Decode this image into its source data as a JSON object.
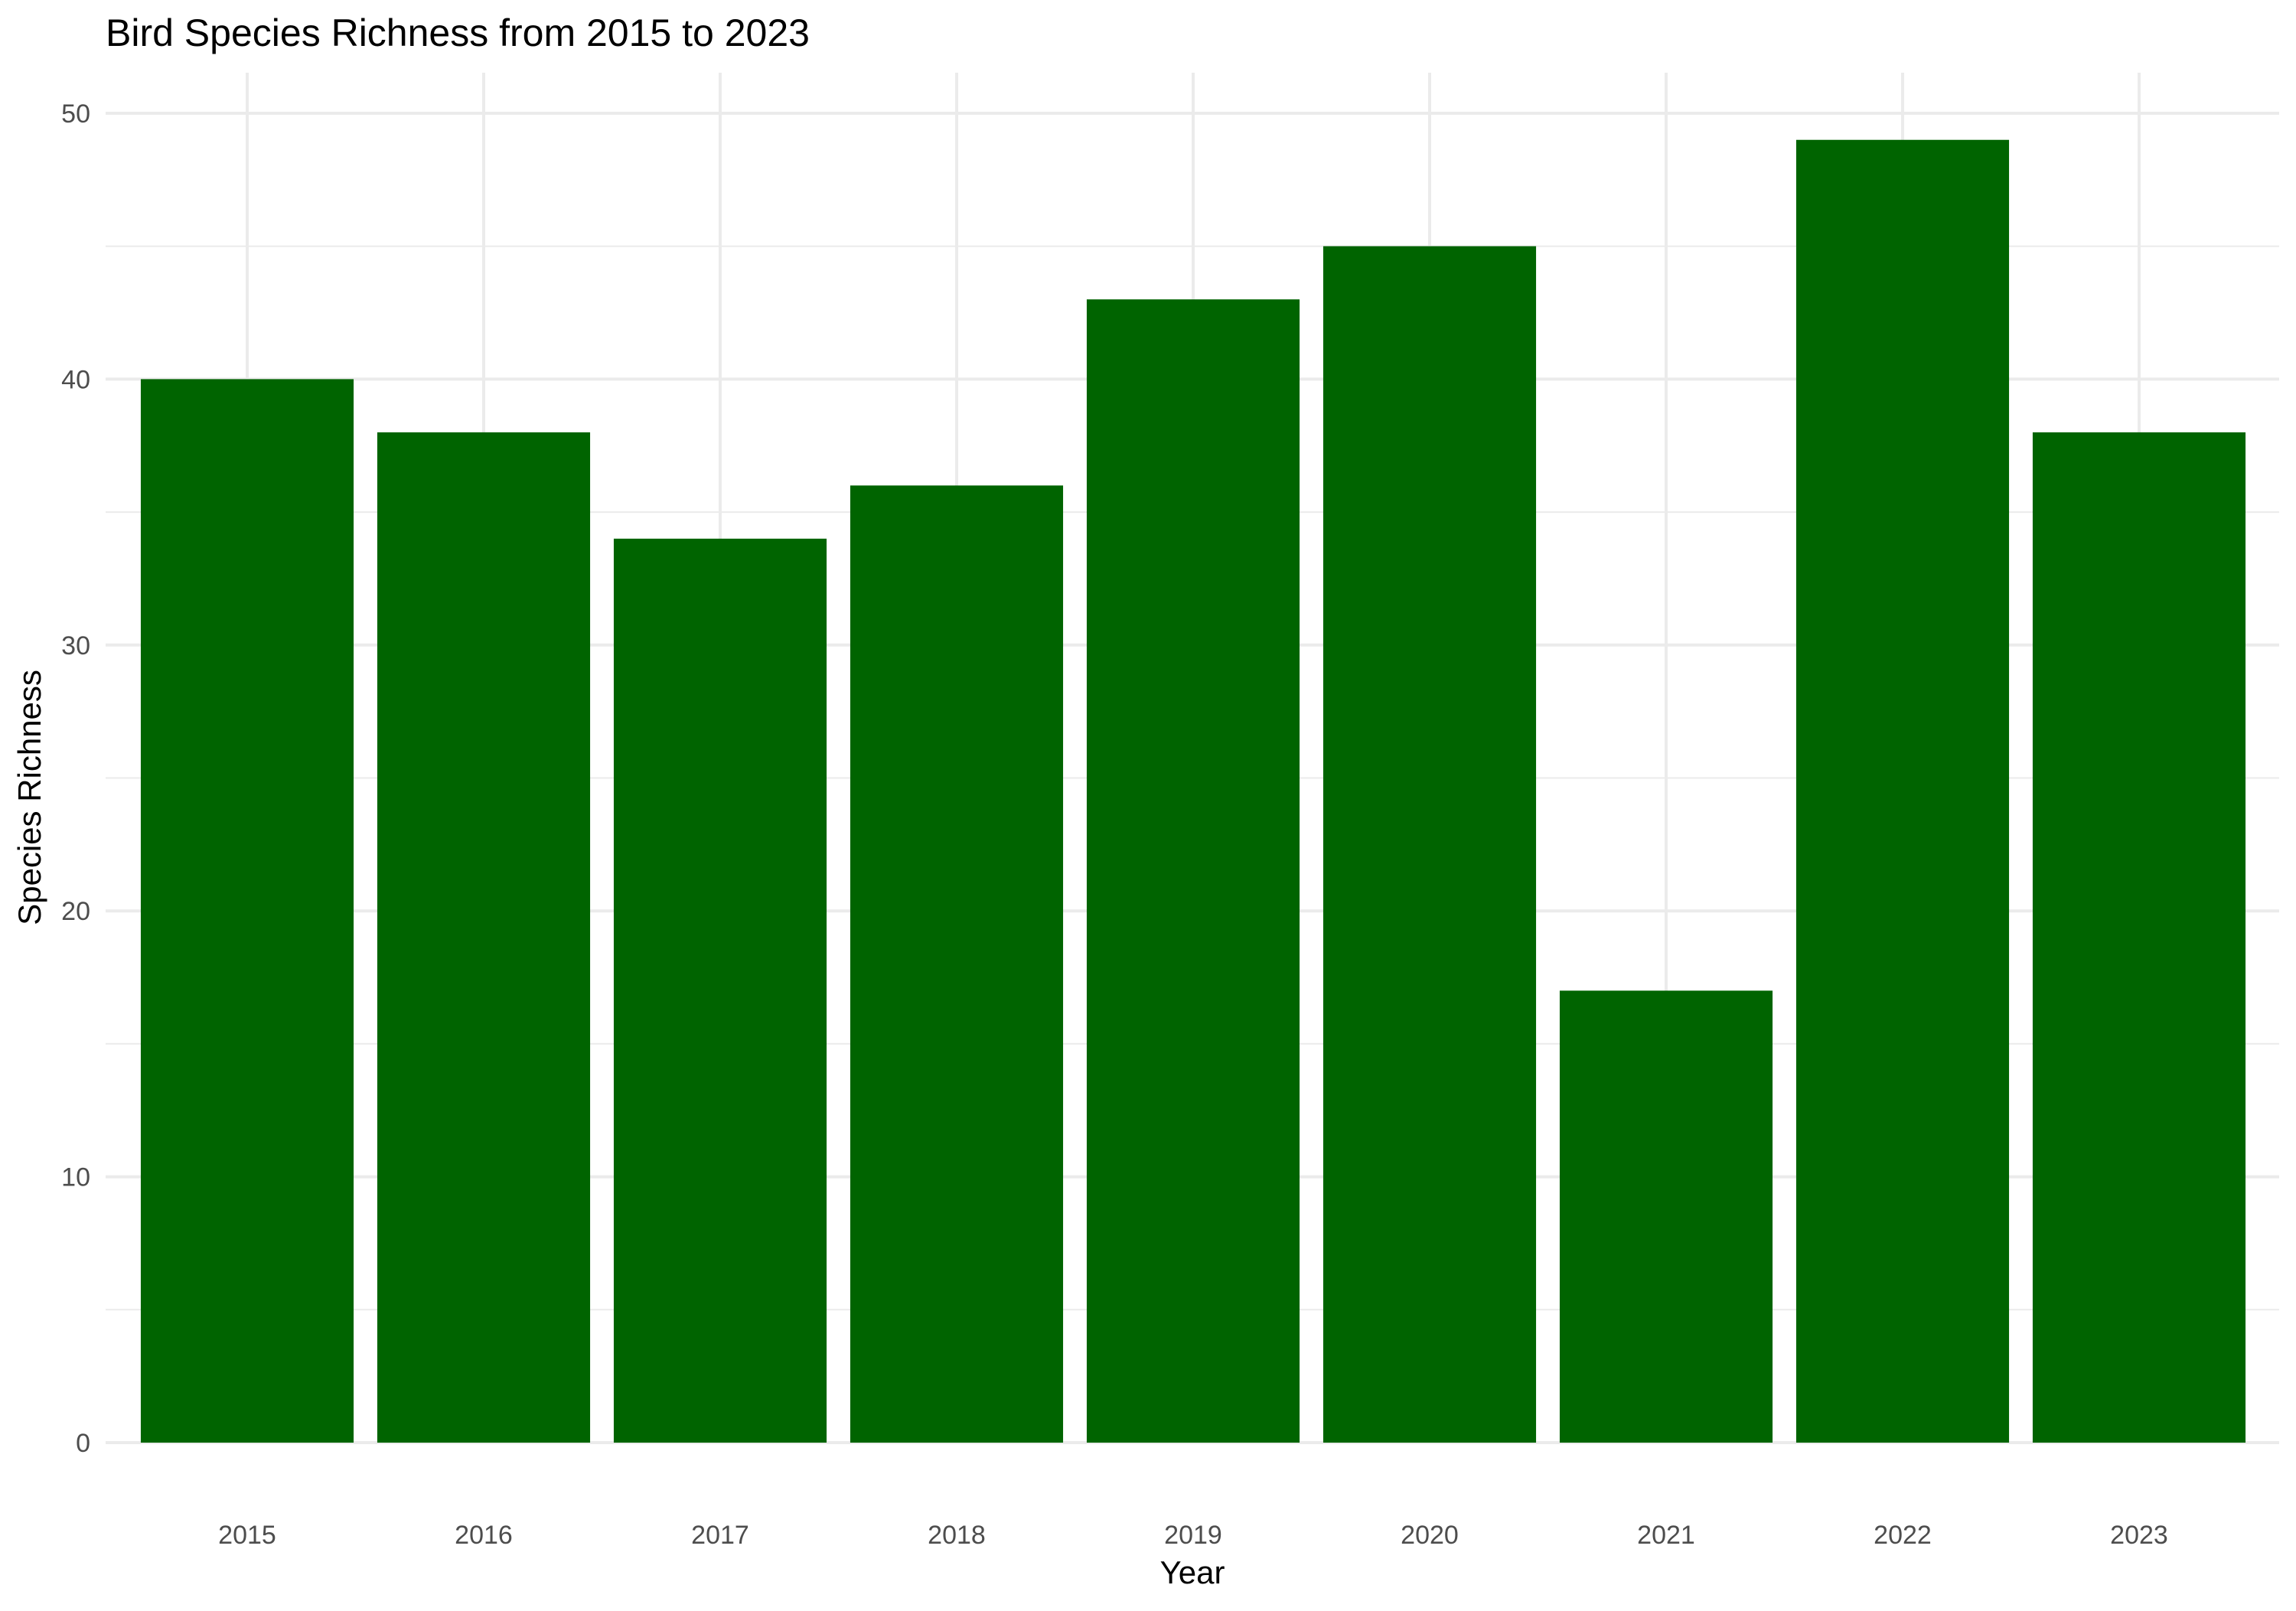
{
  "chart_data": {
    "type": "bar",
    "title": "Bird Species Richness from 2015 to 2023",
    "xlabel": "Year",
    "ylabel": "Species Richness",
    "categories": [
      "2015",
      "2016",
      "2017",
      "2018",
      "2019",
      "2020",
      "2021",
      "2022",
      "2023"
    ],
    "values": [
      40,
      38,
      34,
      36,
      43,
      45,
      17,
      49,
      38
    ],
    "ylim": [
      0,
      51
    ],
    "yticks": [
      0,
      10,
      20,
      30,
      40,
      50
    ],
    "grid": true,
    "legend": "none",
    "bar_color": "#006400",
    "grid_color": "#ebebeb"
  }
}
